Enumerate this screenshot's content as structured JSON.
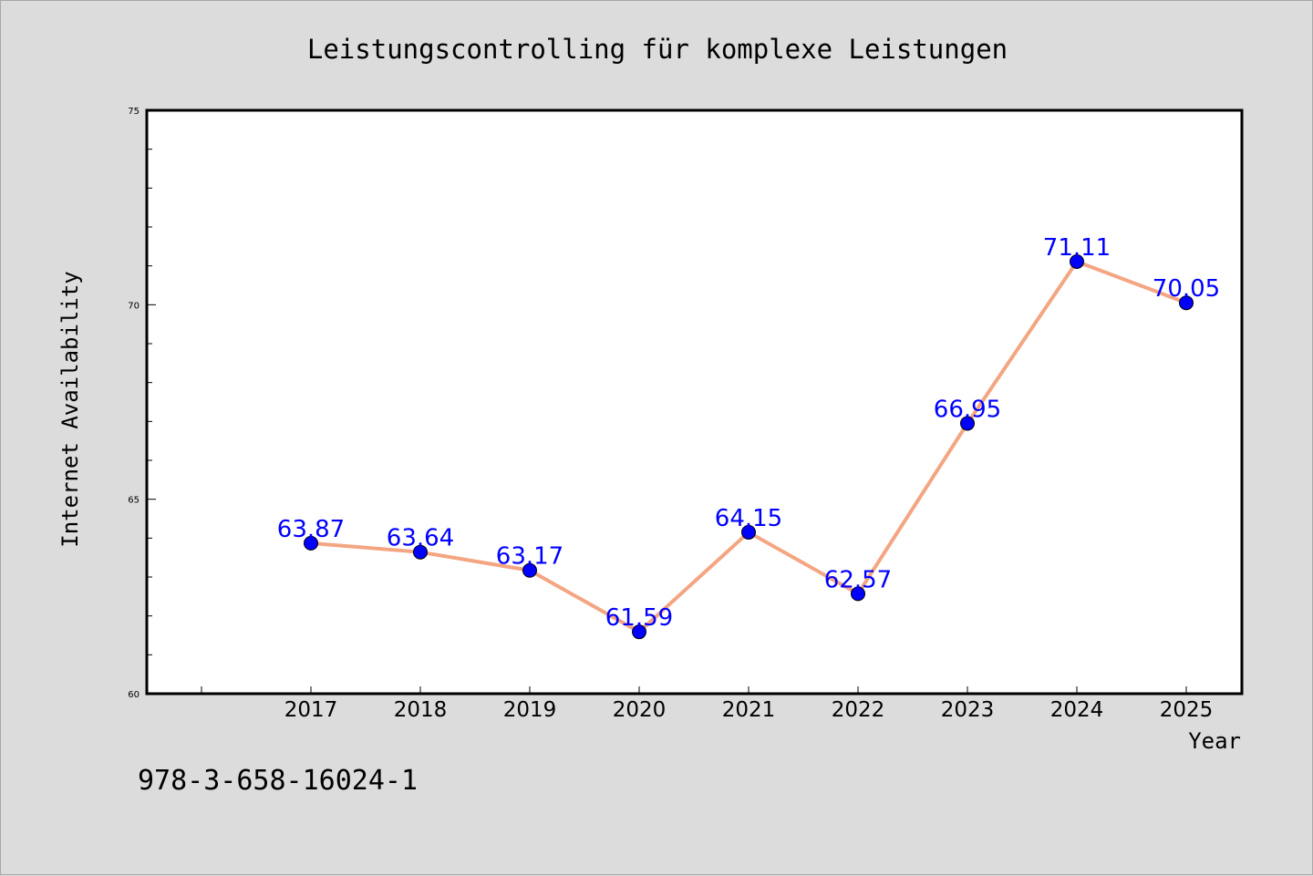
{
  "chart_data": {
    "type": "line",
    "title": "Leistungscontrolling für komplexe Leistungen",
    "xlabel": "Year",
    "ylabel": "Internet Availability",
    "x": [
      "2017",
      "2018",
      "2019",
      "2020",
      "2021",
      "2022",
      "2023",
      "2024",
      "2025"
    ],
    "series": [
      {
        "values": [
          63.87,
          63.64,
          63.17,
          61.59,
          64.15,
          62.57,
          66.95,
          71.11,
          70.05
        ],
        "data_labels": [
          "63.87",
          "63.64",
          "63.17",
          "61.59",
          "64.15",
          "62.57",
          "66.95",
          "71.11",
          "70.05"
        ],
        "line_color": "#f4a582",
        "marker_color": "#0000ff",
        "label_color": "#0000ff"
      }
    ],
    "ylim": [
      60,
      75
    ],
    "y_ticks": [
      "60",
      "65",
      "70",
      "75"
    ],
    "grid": false,
    "legend": "none"
  },
  "footer": {
    "isbn": "978-3-658-16024-1"
  },
  "colors": {
    "background": "#dcdcdc",
    "plot_background": "#ffffff",
    "axis": "#000000",
    "text": "#000000"
  }
}
